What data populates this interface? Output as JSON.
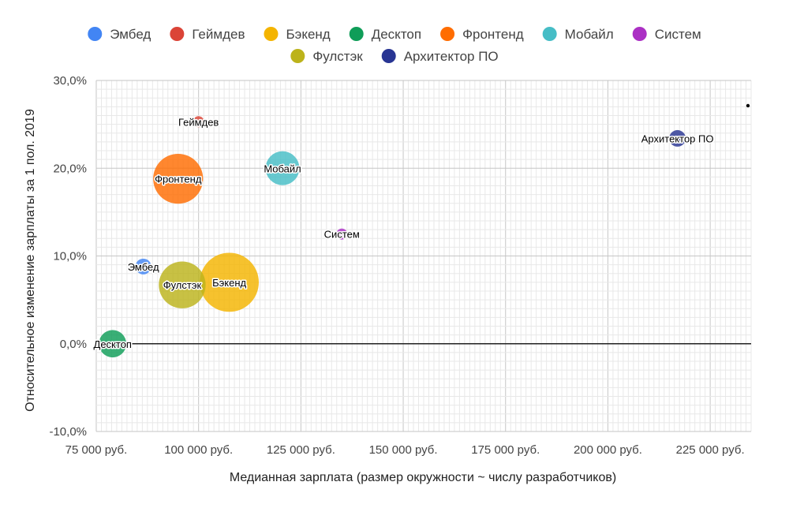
{
  "chart_data": {
    "type": "scatter",
    "variant": "bubble",
    "title": "",
    "xlabel": "Медианная зарплата (размер окружности ~ числу разработчиков)",
    "ylabel": "Относительное изменение зарплаты за 1 пол. 2019",
    "xlim": [
      75000,
      235000
    ],
    "ylim": [
      -10,
      30
    ],
    "x_ticks": [
      75000,
      100000,
      125000,
      150000,
      175000,
      200000,
      225000
    ],
    "x_tick_labels": [
      "75 000 руб.",
      "100 000 руб.",
      "125 000 руб.",
      "150 000 руб.",
      "175 000 руб.",
      "200 000 руб.",
      "225 000 руб."
    ],
    "y_ticks": [
      -10,
      0,
      10,
      20,
      30
    ],
    "y_tick_labels": [
      "-10,0%",
      "0,0%",
      "10,0%",
      "20,0%",
      "30,0%"
    ],
    "grid": true,
    "legend_position": "top",
    "series": [
      {
        "name": "Эмбед",
        "label": "Эмбед",
        "color": "#4285f4",
        "x": 86500,
        "y": 8.8,
        "size": 1
      },
      {
        "name": "Геймдев",
        "label": "Геймдев",
        "color": "#db4437",
        "x": 100000,
        "y": 25.3,
        "size": 0.4
      },
      {
        "name": "Бэкенд",
        "label": "Бэкенд",
        "color": "#f4b400",
        "x": 107500,
        "y": 7.0,
        "size": 14
      },
      {
        "name": "Десктоп",
        "label": "Десктоп",
        "color": "#0f9d58",
        "x": 79000,
        "y": 0.0,
        "size": 3
      },
      {
        "name": "Фронтенд",
        "label": "Фронтенд",
        "color": "#ff6d01",
        "x": 95000,
        "y": 18.8,
        "size": 10
      },
      {
        "name": "Мобайл",
        "label": "Мобайл",
        "color": "#46bdc6",
        "x": 120500,
        "y": 20.0,
        "size": 4.6
      },
      {
        "name": "Систем",
        "label": "Систем",
        "color": "#ab30c4",
        "x": 135000,
        "y": 12.5,
        "size": 0.15
      },
      {
        "name": "Фулстэк",
        "label": "Фулстэк",
        "color": "#bcb31b",
        "x": 96000,
        "y": 6.7,
        "size": 8.8
      },
      {
        "name": "Архитектор ПО",
        "label": "Архитектор ПО",
        "color": "#283593",
        "x": 217000,
        "y": 23.4,
        "size": 1.1
      }
    ]
  }
}
